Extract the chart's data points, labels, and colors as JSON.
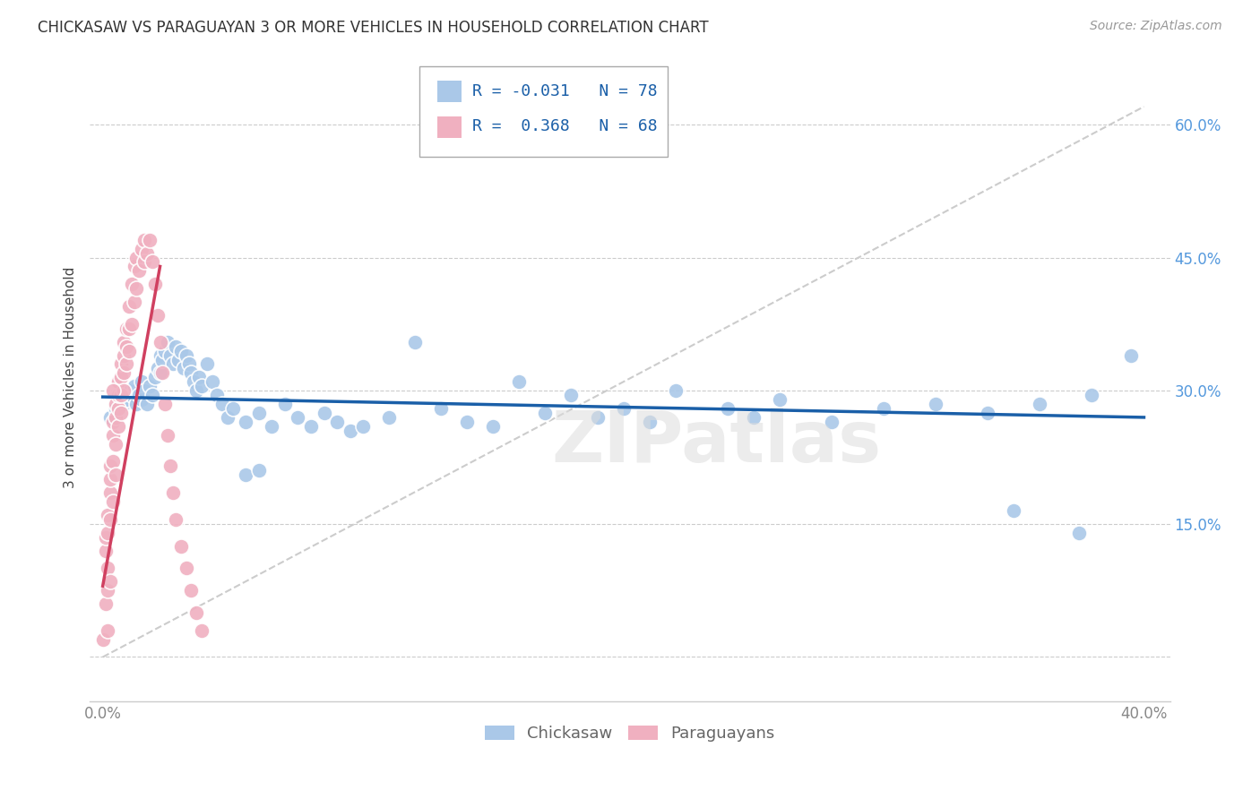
{
  "title": "CHICKASAW VS PARAGUAYAN 3 OR MORE VEHICLES IN HOUSEHOLD CORRELATION CHART",
  "source": "Source: ZipAtlas.com",
  "ylabel": "3 or more Vehicles in Household",
  "watermark": "ZIPatlas",
  "legend_blue_r": "R = -0.031",
  "legend_blue_n": "N = 78",
  "legend_pink_r": "R =  0.368",
  "legend_pink_n": "N = 68",
  "legend_label_blue": "Chickasaw",
  "legend_label_pink": "Paraguayans",
  "blue_color": "#aac8e8",
  "pink_color": "#f0b0c0",
  "blue_line_color": "#1a5fa8",
  "pink_line_color": "#d04060",
  "blue_scatter": [
    [
      0.003,
      0.27
    ],
    [
      0.005,
      0.28
    ],
    [
      0.007,
      0.295
    ],
    [
      0.008,
      0.285
    ],
    [
      0.009,
      0.29
    ],
    [
      0.01,
      0.3
    ],
    [
      0.011,
      0.295
    ],
    [
      0.012,
      0.305
    ],
    [
      0.013,
      0.285
    ],
    [
      0.014,
      0.295
    ],
    [
      0.015,
      0.31
    ],
    [
      0.015,
      0.29
    ],
    [
      0.016,
      0.3
    ],
    [
      0.017,
      0.285
    ],
    [
      0.018,
      0.305
    ],
    [
      0.019,
      0.295
    ],
    [
      0.02,
      0.315
    ],
    [
      0.021,
      0.325
    ],
    [
      0.022,
      0.34
    ],
    [
      0.022,
      0.32
    ],
    [
      0.023,
      0.335
    ],
    [
      0.024,
      0.345
    ],
    [
      0.025,
      0.355
    ],
    [
      0.026,
      0.34
    ],
    [
      0.027,
      0.33
    ],
    [
      0.028,
      0.35
    ],
    [
      0.029,
      0.335
    ],
    [
      0.03,
      0.345
    ],
    [
      0.031,
      0.325
    ],
    [
      0.032,
      0.34
    ],
    [
      0.033,
      0.33
    ],
    [
      0.034,
      0.32
    ],
    [
      0.035,
      0.31
    ],
    [
      0.036,
      0.3
    ],
    [
      0.037,
      0.315
    ],
    [
      0.038,
      0.305
    ],
    [
      0.04,
      0.33
    ],
    [
      0.042,
      0.31
    ],
    [
      0.044,
      0.295
    ],
    [
      0.046,
      0.285
    ],
    [
      0.048,
      0.27
    ],
    [
      0.05,
      0.28
    ],
    [
      0.055,
      0.265
    ],
    [
      0.06,
      0.275
    ],
    [
      0.065,
      0.26
    ],
    [
      0.07,
      0.285
    ],
    [
      0.075,
      0.27
    ],
    [
      0.08,
      0.26
    ],
    [
      0.085,
      0.275
    ],
    [
      0.09,
      0.265
    ],
    [
      0.095,
      0.255
    ],
    [
      0.1,
      0.26
    ],
    [
      0.11,
      0.27
    ],
    [
      0.12,
      0.355
    ],
    [
      0.13,
      0.28
    ],
    [
      0.14,
      0.265
    ],
    [
      0.15,
      0.26
    ],
    [
      0.16,
      0.31
    ],
    [
      0.17,
      0.275
    ],
    [
      0.18,
      0.295
    ],
    [
      0.19,
      0.27
    ],
    [
      0.2,
      0.28
    ],
    [
      0.21,
      0.265
    ],
    [
      0.22,
      0.3
    ],
    [
      0.24,
      0.28
    ],
    [
      0.25,
      0.27
    ],
    [
      0.26,
      0.29
    ],
    [
      0.28,
      0.265
    ],
    [
      0.3,
      0.28
    ],
    [
      0.32,
      0.285
    ],
    [
      0.34,
      0.275
    ],
    [
      0.35,
      0.165
    ],
    [
      0.36,
      0.285
    ],
    [
      0.375,
      0.14
    ],
    [
      0.38,
      0.295
    ],
    [
      0.395,
      0.34
    ],
    [
      0.055,
      0.205
    ],
    [
      0.06,
      0.21
    ]
  ],
  "pink_scatter": [
    [
      0.0,
      0.02
    ],
    [
      0.001,
      0.06
    ],
    [
      0.001,
      0.12
    ],
    [
      0.001,
      0.135
    ],
    [
      0.002,
      0.03
    ],
    [
      0.002,
      0.075
    ],
    [
      0.002,
      0.1
    ],
    [
      0.002,
      0.14
    ],
    [
      0.002,
      0.16
    ],
    [
      0.003,
      0.085
    ],
    [
      0.003,
      0.155
    ],
    [
      0.003,
      0.185
    ],
    [
      0.003,
      0.2
    ],
    [
      0.003,
      0.215
    ],
    [
      0.004,
      0.175
    ],
    [
      0.004,
      0.22
    ],
    [
      0.004,
      0.25
    ],
    [
      0.004,
      0.265
    ],
    [
      0.005,
      0.205
    ],
    [
      0.005,
      0.24
    ],
    [
      0.005,
      0.27
    ],
    [
      0.005,
      0.285
    ],
    [
      0.006,
      0.26
    ],
    [
      0.006,
      0.28
    ],
    [
      0.006,
      0.295
    ],
    [
      0.006,
      0.31
    ],
    [
      0.007,
      0.275
    ],
    [
      0.007,
      0.295
    ],
    [
      0.007,
      0.315
    ],
    [
      0.007,
      0.33
    ],
    [
      0.008,
      0.3
    ],
    [
      0.008,
      0.32
    ],
    [
      0.008,
      0.34
    ],
    [
      0.008,
      0.355
    ],
    [
      0.009,
      0.33
    ],
    [
      0.009,
      0.35
    ],
    [
      0.009,
      0.37
    ],
    [
      0.01,
      0.345
    ],
    [
      0.01,
      0.37
    ],
    [
      0.01,
      0.395
    ],
    [
      0.011,
      0.375
    ],
    [
      0.011,
      0.42
    ],
    [
      0.012,
      0.4
    ],
    [
      0.012,
      0.44
    ],
    [
      0.013,
      0.415
    ],
    [
      0.013,
      0.45
    ],
    [
      0.014,
      0.435
    ],
    [
      0.015,
      0.46
    ],
    [
      0.016,
      0.445
    ],
    [
      0.016,
      0.47
    ],
    [
      0.017,
      0.455
    ],
    [
      0.018,
      0.47
    ],
    [
      0.019,
      0.445
    ],
    [
      0.02,
      0.42
    ],
    [
      0.021,
      0.385
    ],
    [
      0.022,
      0.355
    ],
    [
      0.023,
      0.32
    ],
    [
      0.024,
      0.285
    ],
    [
      0.025,
      0.25
    ],
    [
      0.026,
      0.215
    ],
    [
      0.027,
      0.185
    ],
    [
      0.028,
      0.155
    ],
    [
      0.03,
      0.125
    ],
    [
      0.032,
      0.1
    ],
    [
      0.034,
      0.075
    ],
    [
      0.036,
      0.05
    ],
    [
      0.038,
      0.03
    ],
    [
      0.004,
      0.3
    ]
  ],
  "xlim": [
    -0.005,
    0.41
  ],
  "ylim": [
    -0.05,
    0.68
  ],
  "xtick_positions": [
    0.0,
    0.05,
    0.1,
    0.15,
    0.2,
    0.25,
    0.3,
    0.35,
    0.4
  ],
  "ytick_positions": [
    0.0,
    0.15,
    0.3,
    0.45,
    0.6
  ],
  "ytick_labels": [
    "",
    "15.0%",
    "30.0%",
    "45.0%",
    "60.0%"
  ],
  "background_color": "#ffffff",
  "grid_color": "#cccccc",
  "blue_trend_x": [
    0.0,
    0.4
  ],
  "blue_trend_y": [
    0.293,
    0.27
  ],
  "pink_trend_x": [
    0.0,
    0.022
  ],
  "pink_trend_y": [
    0.08,
    0.44
  ],
  "diag_line_x": [
    0.0,
    0.4
  ],
  "diag_line_y": [
    0.0,
    0.62
  ]
}
